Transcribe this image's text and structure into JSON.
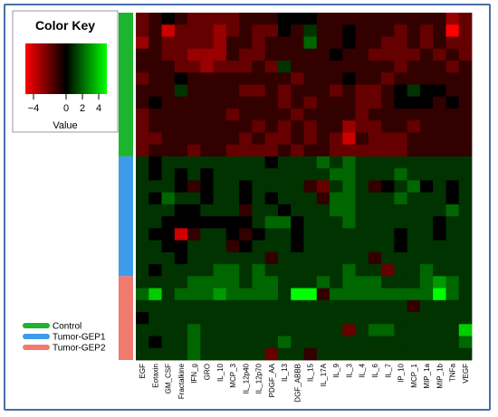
{
  "chart_data": {
    "type": "heatmap",
    "color_key": {
      "title": "Color Key",
      "axis_label": "Value",
      "ticks": [
        -4,
        0,
        2,
        4
      ],
      "range": [
        -5,
        5
      ],
      "low_color": "#ff0000",
      "mid_color": "#000000",
      "high_color": "#00ff00"
    },
    "columns": [
      "EGF",
      "Eotaxin",
      "GM_CSF",
      "Fractalkine",
      "IFN_g",
      "GRO",
      "IL_10",
      "MCP_3",
      "IL_12p40",
      "IL_12p70",
      "PDGF_AA",
      "IL_13",
      "DGF_ABBB",
      "IL_15",
      "IL_17A",
      "IL_9",
      "IL_3",
      "IL_4",
      "IL_6",
      "IL_7",
      "IP_10",
      "MCP_1",
      "MIP_1a",
      "MIP_1b",
      "TNFa",
      "VEGF"
    ],
    "groups": [
      {
        "name": "Control",
        "color": "#1db42e",
        "row_count": 12
      },
      {
        "name": "Tumor-GEP1",
        "color": "#3d9be9",
        "row_count": 10
      },
      {
        "name": "Tumor-GEP2",
        "color": "#f07a6e",
        "row_count": 7
      }
    ],
    "legend": [
      "Control",
      "Tumor-GEP1",
      "Tumor-GEP2"
    ],
    "values": [
      [
        -2,
        -1,
        0,
        -1,
        -2,
        -2,
        -2,
        -2,
        -1,
        -1,
        -1,
        0,
        0,
        0,
        -1,
        -1,
        -1,
        -1,
        -1,
        -1,
        -1,
        -1,
        -1,
        -1,
        -3,
        -2
      ],
      [
        -2,
        -1,
        -4,
        -2,
        -2,
        -2,
        -3,
        -2,
        -1,
        -2,
        -2,
        0,
        -1,
        1,
        -1,
        -1,
        0,
        -1,
        -1,
        -1,
        -2,
        -1,
        -2,
        -1,
        -5,
        -2
      ],
      [
        -3,
        -1,
        -2,
        -2,
        -2,
        -2,
        -3,
        -1,
        -1,
        -2,
        -1,
        -1,
        -1,
        2,
        -1,
        -1,
        0,
        -1,
        -1,
        -2,
        -2,
        -1,
        -2,
        -1,
        -2,
        -2
      ],
      [
        -1,
        -1,
        -2,
        -2,
        -3,
        -3,
        -3,
        -1,
        -2,
        -2,
        -1,
        -1,
        -1,
        -1,
        -1,
        0,
        -1,
        -1,
        -2,
        -2,
        -2,
        -2,
        -1,
        -2,
        -1,
        -2
      ],
      [
        -1,
        -1,
        -1,
        -2,
        -2,
        -3,
        -2,
        -2,
        -2,
        -1,
        -2,
        1,
        -1,
        -1,
        -1,
        -1,
        -1,
        -1,
        -1,
        -1,
        -2,
        -1,
        -1,
        -1,
        -2,
        -1
      ],
      [
        -2,
        -1,
        -1,
        0,
        -1,
        -1,
        -1,
        -1,
        -1,
        -1,
        -1,
        -1,
        -2,
        -1,
        -1,
        -1,
        0,
        -1,
        -1,
        -2,
        -1,
        -1,
        -1,
        -1,
        -1,
        -1
      ],
      [
        -1,
        -1,
        -1,
        1,
        -1,
        -1,
        -1,
        -1,
        -2,
        -2,
        -1,
        -2,
        -1,
        -1,
        -1,
        -2,
        -1,
        -2,
        -2,
        -1,
        0,
        1,
        0,
        0,
        -1,
        -1
      ],
      [
        -1,
        0,
        -1,
        -1,
        -1,
        -1,
        -1,
        -1,
        -1,
        -1,
        -1,
        -2,
        -1,
        -2,
        -1,
        -1,
        -1,
        -2,
        -2,
        -1,
        0,
        0,
        0,
        -1,
        0,
        -1
      ],
      [
        -2,
        -1,
        -1,
        -1,
        -1,
        -1,
        -1,
        -2,
        -1,
        -1,
        -1,
        -1,
        -2,
        -1,
        -1,
        -1,
        -1,
        -2,
        -1,
        -1,
        -1,
        -1,
        -1,
        -1,
        -1,
        -1
      ],
      [
        -2,
        -1,
        -1,
        -1,
        -1,
        -1,
        -1,
        -1,
        -1,
        -2,
        -1,
        -2,
        -1,
        -2,
        -1,
        -1,
        -3,
        -2,
        -2,
        -1,
        -1,
        -2,
        -1,
        -1,
        -1,
        -1
      ],
      [
        -2,
        -2,
        -1,
        -1,
        -1,
        -1,
        -1,
        -1,
        -2,
        -1,
        -2,
        -2,
        -1,
        -2,
        -1,
        -2,
        -4,
        -1,
        -2,
        -2,
        -2,
        -1,
        -1,
        -1,
        -1,
        -1
      ],
      [
        -2,
        -1,
        -1,
        -1,
        -2,
        -1,
        -1,
        -2,
        -2,
        -2,
        -2,
        -1,
        -2,
        -1,
        -1,
        -2,
        -2,
        -2,
        -2,
        -2,
        -2,
        -1,
        -1,
        -1,
        -1,
        -1
      ],
      [
        1,
        0,
        1,
        1,
        1,
        1,
        1,
        1,
        1,
        1,
        0,
        1,
        1,
        1,
        2,
        1,
        2,
        1,
        1,
        1,
        1,
        1,
        1,
        1,
        1,
        1
      ],
      [
        1,
        0,
        1,
        0,
        1,
        0,
        1,
        1,
        1,
        1,
        1,
        1,
        1,
        1,
        1,
        2,
        2,
        1,
        1,
        1,
        2,
        1,
        1,
        1,
        1,
        1
      ],
      [
        1,
        1,
        1,
        0,
        -1,
        0,
        1,
        1,
        0,
        1,
        1,
        1,
        1,
        -1,
        -2,
        1,
        2,
        1,
        -1,
        0,
        1,
        2,
        0,
        1,
        0,
        1
      ],
      [
        1,
        0,
        2,
        1,
        1,
        0,
        1,
        1,
        0,
        1,
        0,
        1,
        1,
        1,
        -1,
        2,
        2,
        1,
        1,
        1,
        2,
        1,
        1,
        1,
        0,
        1
      ],
      [
        1,
        1,
        1,
        0,
        0,
        1,
        1,
        1,
        -1,
        1,
        1,
        0,
        1,
        1,
        1,
        2,
        2,
        1,
        1,
        1,
        1,
        1,
        1,
        1,
        2,
        1
      ],
      [
        1,
        1,
        0,
        0,
        0,
        0,
        0,
        0,
        0,
        1,
        2,
        2,
        0,
        1,
        1,
        1,
        2,
        1,
        1,
        1,
        1,
        1,
        1,
        0,
        1,
        1
      ],
      [
        1,
        0,
        0,
        -4,
        -1,
        1,
        1,
        0,
        -1,
        0,
        1,
        1,
        0,
        1,
        1,
        1,
        1,
        1,
        1,
        1,
        0,
        1,
        1,
        0,
        1,
        1
      ],
      [
        1,
        1,
        0,
        0,
        1,
        1,
        1,
        -1,
        0,
        1,
        1,
        1,
        0,
        1,
        1,
        1,
        1,
        1,
        1,
        1,
        0,
        1,
        1,
        1,
        1,
        1
      ],
      [
        1,
        1,
        1,
        0,
        1,
        1,
        1,
        1,
        1,
        1,
        -1,
        1,
        1,
        1,
        1,
        1,
        1,
        1,
        -1,
        1,
        1,
        1,
        1,
        1,
        1,
        1
      ],
      [
        1,
        0,
        1,
        1,
        1,
        1,
        2,
        2,
        1,
        2,
        1,
        1,
        1,
        1,
        1,
        1,
        2,
        1,
        1,
        -2,
        1,
        1,
        2,
        1,
        1,
        1
      ],
      [
        1,
        1,
        1,
        1,
        2,
        2,
        2,
        2,
        1,
        2,
        2,
        1,
        1,
        1,
        2,
        1,
        2,
        2,
        2,
        1,
        1,
        1,
        2,
        3,
        2,
        1
      ],
      [
        2,
        4,
        1,
        2,
        2,
        2,
        3,
        2,
        2,
        2,
        2,
        1,
        5,
        5,
        -1,
        2,
        2,
        2,
        2,
        2,
        2,
        2,
        2,
        5,
        2,
        1
      ],
      [
        1,
        1,
        1,
        1,
        1,
        1,
        1,
        1,
        1,
        1,
        1,
        1,
        1,
        1,
        1,
        1,
        1,
        1,
        1,
        1,
        1,
        -1,
        1,
        1,
        1,
        1
      ],
      [
        0,
        1,
        1,
        1,
        1,
        1,
        1,
        1,
        1,
        1,
        1,
        1,
        1,
        1,
        1,
        1,
        1,
        1,
        1,
        1,
        1,
        1,
        1,
        1,
        1,
        1
      ],
      [
        1,
        1,
        1,
        1,
        2,
        1,
        1,
        1,
        1,
        1,
        1,
        1,
        1,
        1,
        1,
        1,
        -2,
        1,
        2,
        2,
        1,
        1,
        1,
        1,
        1,
        4
      ],
      [
        1,
        0,
        1,
        1,
        2,
        1,
        1,
        1,
        1,
        1,
        1,
        2,
        1,
        1,
        1,
        1,
        1,
        1,
        1,
        1,
        1,
        1,
        1,
        1,
        1,
        2
      ],
      [
        1,
        1,
        1,
        1,
        2,
        1,
        1,
        1,
        1,
        1,
        -2,
        1,
        1,
        -1,
        1,
        1,
        1,
        1,
        1,
        1,
        1,
        1,
        1,
        1,
        1,
        1
      ]
    ]
  }
}
